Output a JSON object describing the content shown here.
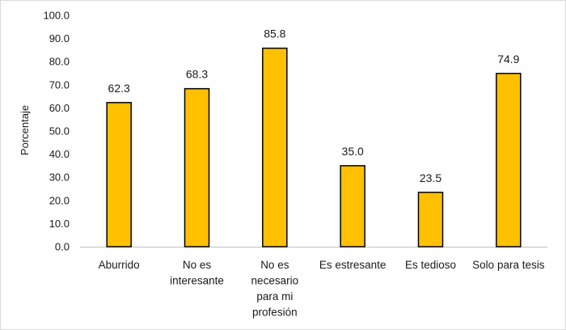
{
  "chart_data": {
    "type": "bar",
    "categories": [
      [
        "Aburrido"
      ],
      [
        "No es",
        "interesante"
      ],
      [
        "No es",
        "necesario",
        "para mi",
        "profesión"
      ],
      [
        "Es estresante"
      ],
      [
        "Es tedioso"
      ],
      [
        "Solo para tesis"
      ]
    ],
    "values": [
      62.3,
      68.3,
      85.8,
      35.0,
      23.5,
      74.9
    ],
    "data_labels": [
      "62.3",
      "68.3",
      "85.8",
      "35.0",
      "23.5",
      "74.9"
    ],
    "ylabel": "Porcentaje",
    "ylim": [
      0,
      100
    ],
    "yticks": [
      "0.0",
      "10.0",
      "20.0",
      "30.0",
      "40.0",
      "50.0",
      "60.0",
      "70.0",
      "80.0",
      "90.0",
      "100.0"
    ],
    "grid": false,
    "legend": "none",
    "bar_color": "#FFC000",
    "bar_edge_color": "#000000"
  }
}
